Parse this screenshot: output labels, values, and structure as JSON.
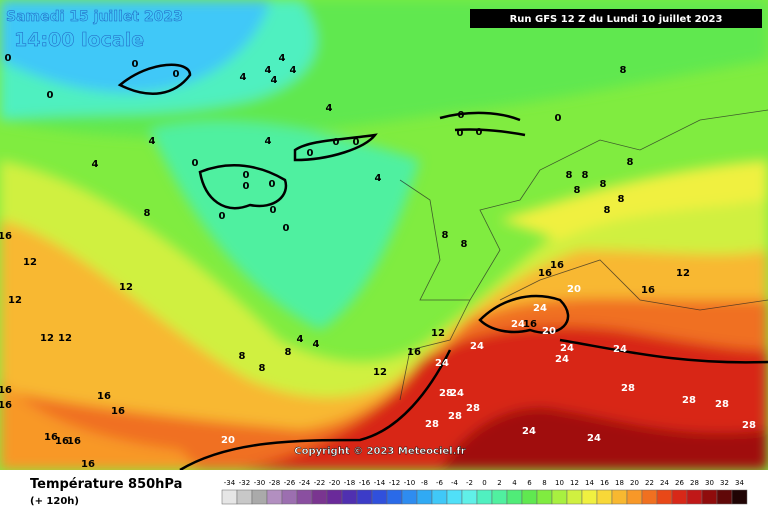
{
  "header": {
    "date": "Samedi 15 juillet 2023",
    "time": "14:00 locale",
    "run": "Run GFS 12 Z du Lundi 10 juillet 2023"
  },
  "copyright": "Copyright © 2023 Meteociel.fr",
  "footer": {
    "title": "Température 850hPa",
    "subtitle": "(+ 120h)"
  },
  "scale": {
    "labels": [
      -34,
      -32,
      -30,
      -28,
      -26,
      -24,
      -22,
      -20,
      -18,
      -16,
      -14,
      -12,
      -10,
      -8,
      -6,
      -4,
      -2,
      0,
      2,
      4,
      6,
      8,
      10,
      12,
      14,
      16,
      18,
      20,
      22,
      24,
      26,
      28,
      30,
      32,
      34
    ],
    "colors": [
      "#e6e6e6",
      "#c8c8c8",
      "#aaaaaa",
      "#b28fc0",
      "#9c6fb0",
      "#8a4fa0",
      "#7a3590",
      "#6a2a9a",
      "#5030b0",
      "#3c3cc8",
      "#3050dc",
      "#2a6ae8",
      "#2e8cf0",
      "#30aaf4",
      "#40c8f8",
      "#50e0f8",
      "#60f0e8",
      "#50f0c0",
      "#50f0a0",
      "#50ec78",
      "#60e850",
      "#80ec40",
      "#a8f040",
      "#d0f040",
      "#f0f040",
      "#f8d838",
      "#f8b830",
      "#f89828",
      "#f07020",
      "#e84818",
      "#d82818",
      "#c01818",
      "#900c0c",
      "#600808",
      "#200404"
    ]
  },
  "map": {
    "labels": [
      0,
      0,
      0,
      0,
      4,
      4,
      4,
      4,
      4,
      4,
      0,
      0,
      0,
      0,
      8,
      4,
      4,
      4,
      0,
      0,
      0,
      0,
      0,
      0,
      0,
      0,
      0,
      0,
      4,
      8,
      16,
      12,
      12,
      12,
      12,
      12,
      4,
      4,
      8,
      8,
      8,
      12,
      12,
      16,
      24,
      24,
      24,
      24,
      16,
      16,
      16,
      20,
      20,
      24,
      24,
      24,
      16,
      12,
      28,
      28,
      24,
      28,
      28,
      28,
      24,
      24,
      28,
      28,
      28,
      16,
      16,
      16,
      16,
      16,
      16,
      20,
      16,
      16,
      8,
      8,
      8,
      8,
      8,
      8,
      8,
      8,
      8
    ]
  }
}
